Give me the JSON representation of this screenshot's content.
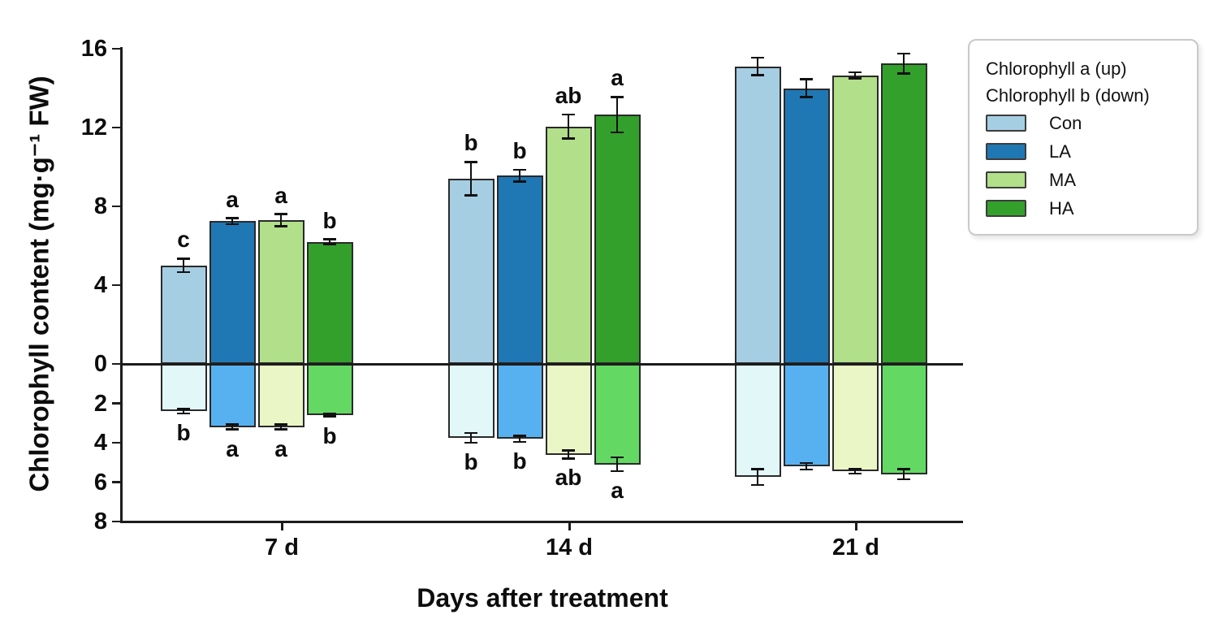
{
  "chart_data": {
    "type": "bar",
    "title": "",
    "xlabel": "Days after treatment",
    "ylabel": "Chlorophyll content (mg·g⁻¹ FW)",
    "categories": [
      "7 d",
      "14 d",
      "21 d"
    ],
    "y_axis": {
      "up_ticks": [
        16,
        12,
        8,
        4,
        0
      ],
      "down_ticks": [
        2,
        4,
        6,
        8
      ],
      "up_max": 16,
      "down_max": 8,
      "grid": false
    },
    "legend": {
      "position": "upper right, outside plot",
      "title_up": "Chlorophyll a (up)",
      "title_down": "Chlorophyll b (down)",
      "entries": [
        "Con",
        "LA",
        "MA",
        "HA"
      ]
    },
    "series": [
      {
        "name": "Con",
        "color_up": "#a6cee3",
        "color_down": "#e2f7f8",
        "chl_a": {
          "values": [
            5.0,
            9.4,
            15.1
          ],
          "errors": [
            0.35,
            0.85,
            0.45
          ],
          "letters": [
            "c",
            "b",
            ""
          ]
        },
        "chl_b": {
          "values": [
            2.4,
            3.75,
            5.75
          ],
          "errors": [
            0.12,
            0.25,
            0.4
          ],
          "letters": [
            "b",
            "b",
            ""
          ]
        }
      },
      {
        "name": "LA",
        "color_up": "#1f78b4",
        "color_down": "#57b1f1",
        "chl_a": {
          "values": [
            7.25,
            9.55,
            14.0
          ],
          "errors": [
            0.15,
            0.3,
            0.45
          ],
          "letters": [
            "a",
            "b",
            ""
          ]
        },
        "chl_b": {
          "values": [
            3.2,
            3.8,
            5.2
          ],
          "errors": [
            0.12,
            0.15,
            0.17
          ],
          "letters": [
            "a",
            "b",
            ""
          ]
        }
      },
      {
        "name": "MA",
        "color_up": "#b2df8a",
        "color_down": "#eaf6c5",
        "chl_a": {
          "values": [
            7.3,
            12.05,
            14.65
          ],
          "errors": [
            0.3,
            0.6,
            0.15
          ],
          "letters": [
            "a",
            "ab",
            ""
          ]
        },
        "chl_b": {
          "values": [
            3.2,
            4.6,
            5.45
          ],
          "errors": [
            0.12,
            0.2,
            0.12
          ],
          "letters": [
            "a",
            "ab",
            ""
          ]
        }
      },
      {
        "name": "HA",
        "color_up": "#33a02c",
        "color_down": "#63d863",
        "chl_a": {
          "values": [
            6.2,
            12.65,
            15.25
          ],
          "errors": [
            0.12,
            0.9,
            0.5
          ],
          "letters": [
            "b",
            "a",
            ""
          ]
        },
        "chl_b": {
          "values": [
            2.6,
            5.1,
            5.6
          ],
          "errors": [
            0.06,
            0.35,
            0.25
          ],
          "letters": [
            "b",
            "a",
            ""
          ]
        }
      }
    ]
  }
}
